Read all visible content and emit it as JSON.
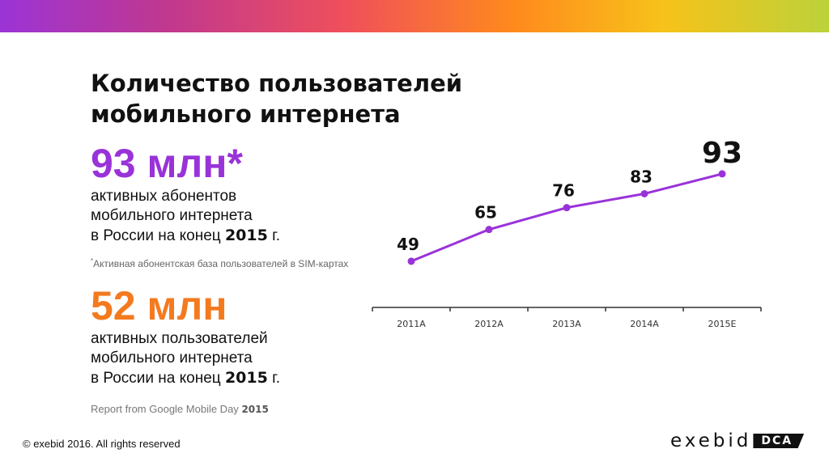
{
  "header": {
    "title_line1": "Количество пользователей",
    "title_line2": "мобильного интернета"
  },
  "stat1": {
    "value": "93 млн*",
    "line1": "активных абонентов",
    "line2": "мобильного интернета",
    "line3_prefix": "в России на конец",
    "year": "2015",
    "line3_suffix": "г."
  },
  "footnote": {
    "mark": "*",
    "text": "Активная абонентская база пользователей в SIM-картах"
  },
  "stat2": {
    "value": "52 млн",
    "line1": "активных пользователей",
    "line2": "мобильного интернета",
    "line3_prefix": "в России на конец",
    "year": "2015",
    "line3_suffix": "г."
  },
  "source": {
    "text": "Report from Google Mobile Day",
    "year": "2015"
  },
  "footer": {
    "copyright": "© exebid 2016. All rights reserved",
    "logo_text": "exebid",
    "logo_badge": "DCA"
  },
  "colors": {
    "purple": "#9933d9",
    "orange": "#f47a1f"
  },
  "chart_data": {
    "type": "line",
    "categories": [
      "2011A",
      "2012A",
      "2013A",
      "2014A",
      "2015E"
    ],
    "values": [
      49,
      65,
      76,
      83,
      93
    ],
    "data_labels": [
      "49",
      "65",
      "76",
      "83",
      "93"
    ],
    "line_color": "#9933d9",
    "ylim": [
      40,
      95
    ]
  }
}
